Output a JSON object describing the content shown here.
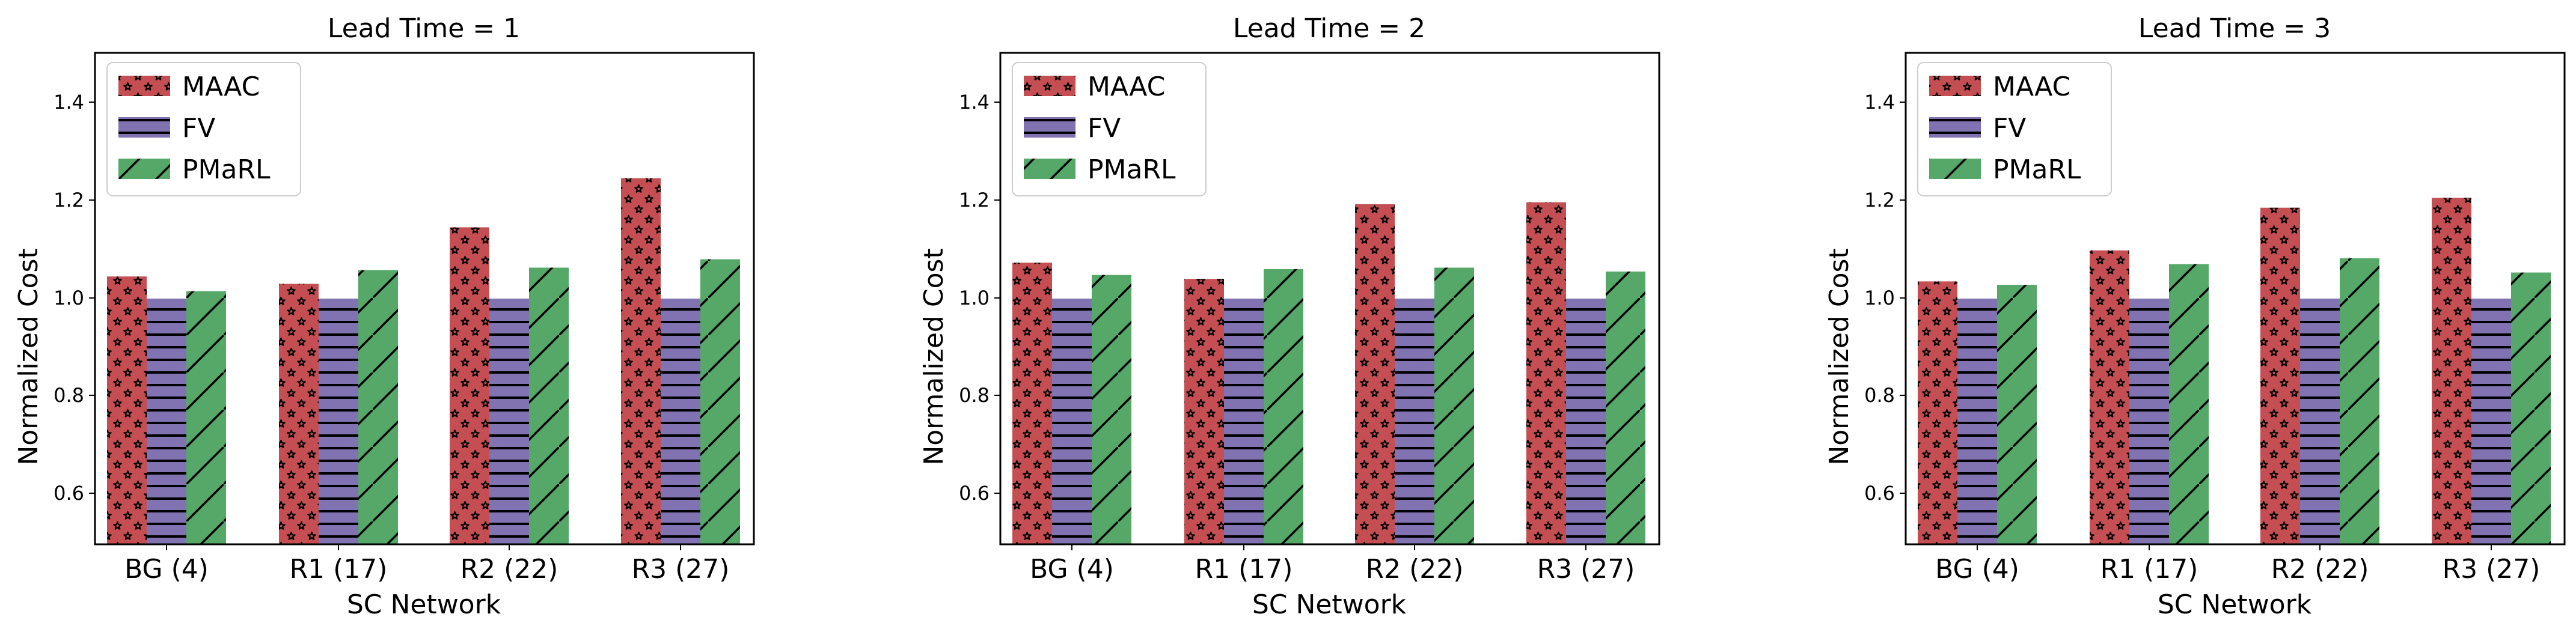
{
  "colors": {
    "MAAC": "#c44e52",
    "FV": "#8172b2",
    "PMaRL": "#55a868",
    "pattern_MAAC": "stars",
    "pattern_FV": "horizontal-lines",
    "pattern_PMaRL": "diagonal-lines"
  },
  "chart_data": [
    {
      "type": "bar",
      "title": "Lead Time = 1",
      "xlabel": "SC Network",
      "ylabel": "Normalized Cost",
      "ylim": [
        0.5,
        1.5
      ],
      "yticks": [
        "0.6",
        "0.8",
        "1.0",
        "1.2",
        "1.4"
      ],
      "categories": [
        "BG (4)",
        "R1 (17)",
        "R2 (22)",
        "R3 (27)"
      ],
      "legend": "top-left",
      "series": [
        {
          "name": "MAAC",
          "values": [
            1.045,
            1.03,
            1.145,
            1.245
          ]
        },
        {
          "name": "FV",
          "values": [
            1.0,
            1.0,
            1.0,
            1.0
          ]
        },
        {
          "name": "PMaRL",
          "values": [
            1.015,
            1.058,
            1.063,
            1.08
          ]
        }
      ]
    },
    {
      "type": "bar",
      "title": "Lead Time = 2",
      "xlabel": "SC Network",
      "ylabel": "Normalized Cost",
      "ylim": [
        0.5,
        1.5
      ],
      "yticks": [
        "0.6",
        "0.8",
        "1.0",
        "1.2",
        "1.4"
      ],
      "categories": [
        "BG (4)",
        "R1 (17)",
        "R2 (22)",
        "R3 (27)"
      ],
      "legend": "top-left",
      "series": [
        {
          "name": "MAAC",
          "values": [
            1.073,
            1.04,
            1.192,
            1.196
          ]
        },
        {
          "name": "FV",
          "values": [
            1.0,
            1.0,
            1.0,
            1.0
          ]
        },
        {
          "name": "PMaRL",
          "values": [
            1.048,
            1.06,
            1.063,
            1.055
          ]
        }
      ]
    },
    {
      "type": "bar",
      "title": "Lead Time = 3",
      "xlabel": "SC Network",
      "ylabel": "Normalized Cost",
      "ylim": [
        0.5,
        1.5
      ],
      "yticks": [
        "0.6",
        "0.8",
        "1.0",
        "1.2",
        "1.4"
      ],
      "categories": [
        "BG (4)",
        "R1 (17)",
        "R2 (22)",
        "R3 (27)"
      ],
      "legend": "top-left",
      "series": [
        {
          "name": "MAAC",
          "values": [
            1.035,
            1.098,
            1.185,
            1.205
          ]
        },
        {
          "name": "FV",
          "values": [
            1.0,
            1.0,
            1.0,
            1.0
          ]
        },
        {
          "name": "PMaRL",
          "values": [
            1.028,
            1.07,
            1.082,
            1.053
          ]
        }
      ]
    }
  ]
}
